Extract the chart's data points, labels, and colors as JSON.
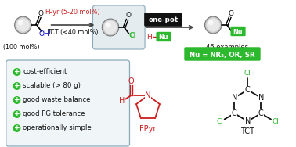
{
  "bg_color": "#ffffff",
  "arrow_color": "#404040",
  "green": "#2db92d",
  "red": "#cc2020",
  "blue": "#0000cc",
  "black": "#111111",
  "gray_box_bg": "#e4ecf0",
  "gray_box_border": "#8aaabb",
  "dark_box_bg": "#111111",
  "bullet_items": [
    "cost-efficient",
    "scalable (> 80 g)",
    "good waste balance",
    "good FG tolerance",
    "operationally simple"
  ],
  "fpyr_label": "FPyr",
  "tct_label": "TCT",
  "one_pot_label": "one-pot",
  "examples_label": "46 examples",
  "nu_label": "Nu = NR₂, OR, SR",
  "mol_pct_label": "(100 mol%)",
  "fpyr_conditions": "FPyr (5-20 mol%)",
  "tct_conditions": "TCT (<40 mol%)"
}
